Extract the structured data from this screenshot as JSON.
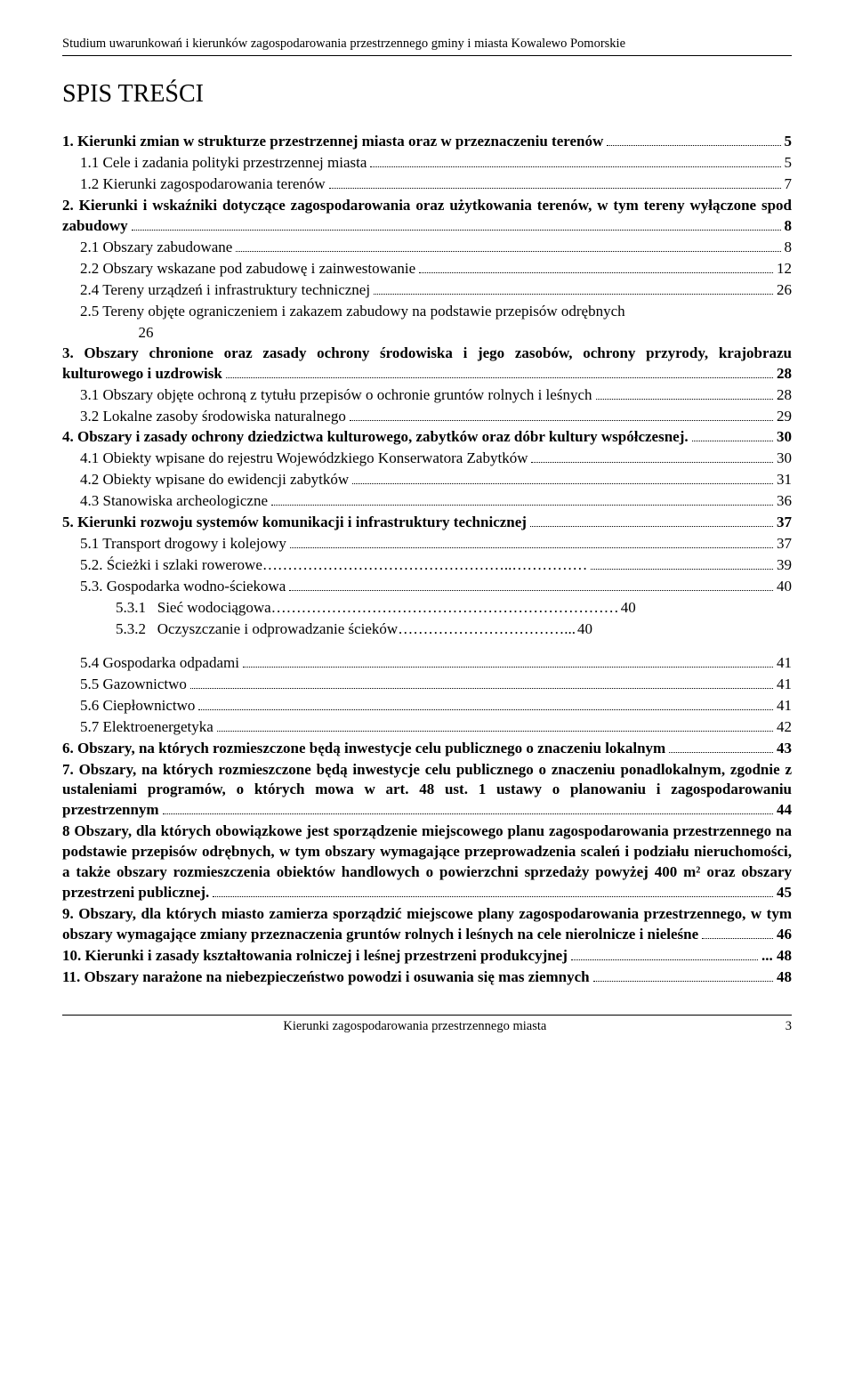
{
  "header": "Studium uwarunkowań i kierunków zagospodarowania przestrzennego gminy i miasta Kowalewo Pomorskie",
  "title": "SPIS TREŚCI",
  "footer_title": "Kierunki zagospodarowania przestrzennego miasta",
  "footer_page": "3",
  "entries": [
    {
      "bold": true,
      "indent": 0,
      "text": "1. Kierunki zmian w strukturze przestrzennej miasta oraz w przeznaczeniu terenów",
      "page": "5"
    },
    {
      "bold": false,
      "indent": 1,
      "text": "1.1 Cele i zadania polityki przestrzennej miasta",
      "page": "5"
    },
    {
      "bold": false,
      "indent": 1,
      "text": "1.2 Kierunki zagospodarowania terenów",
      "page": "7"
    },
    {
      "bold": true,
      "indent": 0,
      "text": "2. Kierunki i wskaźniki dotyczące zagospodarowania oraz użytkowania terenów, w tym tereny wyłączone spod zabudowy",
      "page": "8"
    },
    {
      "bold": false,
      "indent": 1,
      "text": "2.1 Obszary zabudowane",
      "page": "8"
    },
    {
      "bold": false,
      "indent": 1,
      "text": "2.2 Obszary wskazane pod zabudowę i zainwestowanie",
      "page": "12"
    },
    {
      "bold": false,
      "indent": 1,
      "text": "2.4 Tereny urządzeń i infrastruktury technicznej",
      "page": "26"
    },
    {
      "bold": false,
      "indent": 1,
      "text": "2.5 Tereny objęte ograniczeniem i zakazem zabudowy na podstawie przepisów odrębnych",
      "page": "",
      "trailing": "26",
      "nolead": true
    },
    {
      "bold": true,
      "indent": 0,
      "text": "3. Obszary chronione oraz zasady ochrony środowiska i jego zasobów, ochrony przyrody, krajobrazu kulturowego i uzdrowisk",
      "page": "28"
    },
    {
      "bold": false,
      "indent": 1,
      "text": "3.1 Obszary objęte ochroną z tytułu przepisów o ochronie gruntów rolnych i leśnych",
      "page": "28"
    },
    {
      "bold": false,
      "indent": 1,
      "text": "3.2 Lokalne zasoby środowiska naturalnego",
      "page": "29"
    },
    {
      "bold": true,
      "indent": 0,
      "text": "4. Obszary i zasady ochrony dziedzictwa kulturowego, zabytków oraz dóbr kultury współczesnej.",
      "page": "30"
    },
    {
      "bold": false,
      "indent": 1,
      "text": "4.1 Obiekty wpisane do rejestru Wojewódzkiego Konserwatora Zabytków",
      "page": "30"
    },
    {
      "bold": false,
      "indent": 1,
      "text": "4.2 Obiekty wpisane do ewidencji zabytków",
      "page": "31"
    },
    {
      "bold": false,
      "indent": 1,
      "text": "4.3 Stanowiska archeologiczne",
      "page": "36"
    },
    {
      "bold": true,
      "indent": 0,
      "text": "5. Kierunki rozwoju systemów komunikacji i infrastruktury technicznej",
      "page": "37"
    },
    {
      "bold": false,
      "indent": 1,
      "text": "5.1 Transport drogowy i kolejowy",
      "page": "37"
    },
    {
      "bold": false,
      "indent": 1,
      "text": "5.2. Ścieżki i szlaki rowerowe…………………………………………..……………",
      "page": "39",
      "nodots": true
    },
    {
      "bold": false,
      "indent": 1,
      "text": "5.3. Gospodarka wodno-ściekowa",
      "page": "40"
    },
    {
      "bold": false,
      "indent": 2,
      "text": "5.3.1   Sieć wodociągowa……………………………………………………………",
      "page": "40",
      "nodots": true,
      "nolead": true
    },
    {
      "bold": false,
      "indent": 2,
      "text": "5.3.2   Oczyszczanie i odprowadzanie ścieków……………………………...",
      "page": "40",
      "nodots": true,
      "nolead": true
    },
    {
      "spacer": true
    },
    {
      "bold": false,
      "indent": 1,
      "text": "5.4 Gospodarka odpadami",
      "page": "41"
    },
    {
      "bold": false,
      "indent": 1,
      "text": "5.5 Gazownictwo",
      "page": "41"
    },
    {
      "bold": false,
      "indent": 1,
      "text": "5.6 Ciepłownictwo",
      "page": "41"
    },
    {
      "bold": false,
      "indent": 1,
      "text": "5.7 Elektroenergetyka",
      "page": "42"
    },
    {
      "bold": true,
      "indent": 0,
      "text": "6. Obszary, na których rozmieszczone będą inwestycje celu publicznego o znaczeniu lokalnym",
      "page": "43"
    },
    {
      "bold": true,
      "indent": 0,
      "text": "7. Obszary, na których rozmieszczone będą inwestycje celu publicznego o znaczeniu ponadlokalnym, zgodnie z ustaleniami programów, o których mowa w art. 48 ust. 1 ustawy o planowaniu i zagospodarowaniu przestrzennym",
      "page": "44"
    },
    {
      "bold": true,
      "indent": 0,
      "text": "8 Obszary, dla których obowiązkowe jest sporządzenie miejscowego planu zagospodarowania przestrzennego na podstawie przepisów odrębnych, w tym obszary wymagające przeprowadzenia scaleń i podziału nieruchomości, a także obszary rozmieszczenia obiektów handlowych o powierzchni sprzedaży powyżej 400 m² oraz obszary przestrzeni publicznej.",
      "page": "45"
    },
    {
      "bold": true,
      "indent": 0,
      "text": "9. Obszary, dla których miasto zamierza sporządzić miejscowe plany zagospodarowania przestrzennego, w tym obszary wymagające zmiany przeznaczenia gruntów rolnych i leśnych na cele nierolnicze i nieleśne",
      "page": "46"
    },
    {
      "bold": true,
      "indent": 0,
      "text": "10. Kierunki i zasady kształtowania rolniczej i leśnej przestrzeni produkcyjnej",
      "page": "48",
      "lastpunct": "..."
    },
    {
      "bold": true,
      "indent": 0,
      "text": "11. Obszary narażone na niebezpieczeństwo powodzi i osuwania się mas ziemnych",
      "page": "48"
    }
  ]
}
